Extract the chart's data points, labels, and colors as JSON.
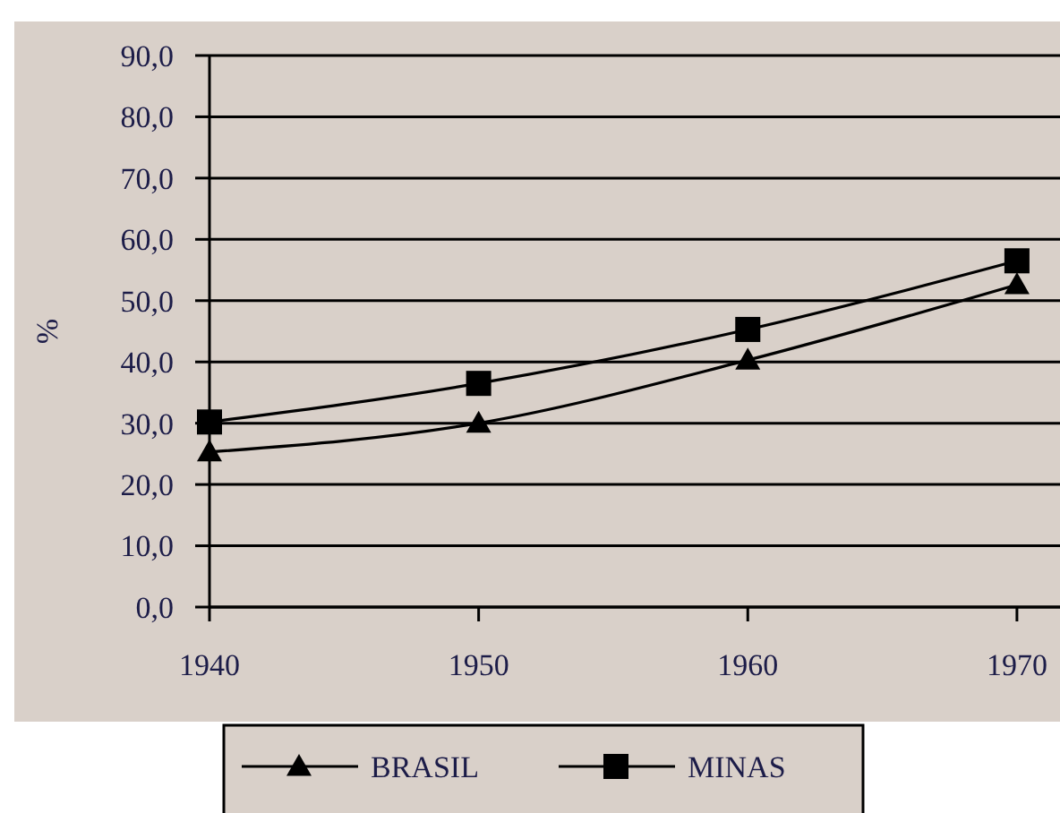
{
  "chart_data": {
    "type": "line",
    "ylabel": "%",
    "x": [
      1940,
      1950,
      1960,
      1970
    ],
    "xlim": [
      1940,
      1971.6
    ],
    "xticks": [
      1940,
      1950,
      1960,
      {
        "value": 1970,
        "label": "1970"
      }
    ],
    "ylim": [
      0,
      90
    ],
    "yticks": [
      {
        "value": 0,
        "label": "0,0"
      },
      {
        "value": 10,
        "label": "10,0"
      },
      {
        "value": 20,
        "label": "20,0"
      },
      {
        "value": 30,
        "label": "30,0"
      },
      {
        "value": 40,
        "label": "40,0"
      },
      {
        "value": 50,
        "label": "50,0"
      },
      {
        "value": 60,
        "label": "60,0"
      },
      {
        "value": 70,
        "label": "70,0"
      },
      {
        "value": 80,
        "label": "80,0"
      },
      {
        "value": 90,
        "label": "90,0"
      }
    ],
    "grid": "y",
    "legend": "bottom",
    "line_style": "solid",
    "series": [
      {
        "name": "BRASIL",
        "color": "#000000",
        "marker": "triangle",
        "values": [
          25.3,
          30.0,
          40.3,
          52.6
        ]
      },
      {
        "name": "MINAS",
        "color": "#000000",
        "marker": "square",
        "values": [
          30.2,
          36.5,
          45.3,
          56.5
        ]
      }
    ]
  }
}
